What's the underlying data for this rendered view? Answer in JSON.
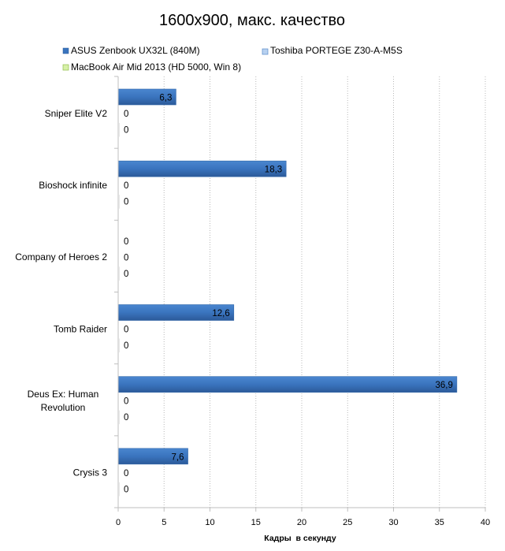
{
  "chart_data": {
    "type": "bar",
    "orientation": "horizontal",
    "title": "1600x900, макс. качество",
    "xlabel": "Кадры  в секунду",
    "ylabel": "",
    "xlim": [
      0,
      40
    ],
    "xticks": [
      0,
      5,
      10,
      15,
      20,
      25,
      30,
      35,
      40
    ],
    "xtick_labels": [
      "0",
      "5",
      "10",
      "15",
      "20",
      "25",
      "30",
      "35",
      "40"
    ],
    "grid": "vertical dotted",
    "legend_position": "top",
    "categories": [
      [
        "Sniper Elite V2"
      ],
      [
        "Bioshock infinite"
      ],
      [
        "Company of Heroes 2"
      ],
      [
        "Tomb Raider"
      ],
      [
        "Deus Ex: Human",
        "Revolution"
      ],
      [
        "Crysis 3"
      ]
    ],
    "series": [
      {
        "name": "ASUS Zenbook UX32L (840M)",
        "color": "#3a74be",
        "values": [
          6.3,
          18.3,
          null,
          12.6,
          36.9,
          7.6
        ],
        "labels": [
          "6,3",
          "18,3",
          "0",
          "12,6",
          "36,9",
          "7,6"
        ]
      },
      {
        "name": "Toshiba PORTEGE Z30-A-M5S",
        "color": "#b7d1f0",
        "values": [
          0,
          0,
          0,
          0,
          0,
          0
        ],
        "labels": [
          "0",
          "0",
          "0",
          "0",
          "0",
          "0"
        ]
      },
      {
        "name": "MacBook Air Mid 2013 (HD 5000, Win 8)",
        "color": "#d7f0a8",
        "values": [
          0,
          0,
          0,
          0,
          0,
          0
        ],
        "labels": [
          "0",
          "0",
          "0",
          "0",
          "0",
          "0"
        ]
      }
    ]
  }
}
